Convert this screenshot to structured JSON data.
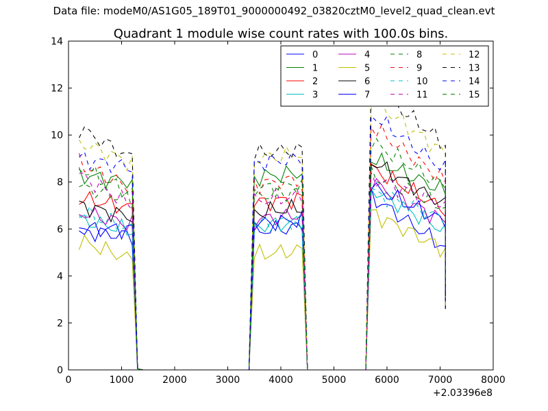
{
  "suptitle": "Data file: modeM0/AS1G05_189T01_9000000492_03820cztM0_level2_quad_clean.evt",
  "chart_data": {
    "type": "line",
    "title": "Quadrant 1 module wise count rates with 100.0s bins.",
    "xlabel": "",
    "ylabel": "",
    "x_offset_label": "+2.03396e8",
    "xlim": [
      0,
      8000
    ],
    "ylim": [
      0,
      14
    ],
    "xticks": [
      0,
      1000,
      2000,
      3000,
      4000,
      5000,
      6000,
      7000,
      8000
    ],
    "yticks": [
      0,
      2,
      4,
      6,
      8,
      10,
      12,
      14
    ],
    "grid": false,
    "legend": {
      "location": "top-right",
      "columns": 4
    },
    "bins": {
      "segment1": {
        "start": 200,
        "step": 100,
        "count": 11
      },
      "segment2": {
        "start": 3500,
        "step": 100,
        "count": 10
      },
      "segment3": {
        "start": 5700,
        "step": 100,
        "count": 15
      }
    },
    "series": [
      {
        "name": "0",
        "color": "#0000ff",
        "dash": "solid",
        "levels": [
          5.9,
          5.9,
          7.4,
          5.2
        ]
      },
      {
        "name": "1",
        "color": "#008000",
        "dash": "solid",
        "levels": [
          8.3,
          8.2,
          9.0,
          7.6
        ]
      },
      {
        "name": "2",
        "color": "#ff0000",
        "dash": "solid",
        "levels": [
          7.3,
          7.1,
          8.6,
          6.8
        ]
      },
      {
        "name": "3",
        "color": "#00bfbf",
        "dash": "solid",
        "levels": [
          6.4,
          6.1,
          7.7,
          5.9
        ]
      },
      {
        "name": "4",
        "color": "#bf00bf",
        "dash": "solid",
        "levels": [
          6.7,
          6.4,
          8.0,
          6.3
        ]
      },
      {
        "name": "5",
        "color": "#bfbf00",
        "dash": "solid",
        "levels": [
          5.5,
          4.9,
          6.7,
          5.1
        ]
      },
      {
        "name": "6",
        "color": "#000000",
        "dash": "solid",
        "levels": [
          7.0,
          6.7,
          8.9,
          7.0
        ]
      },
      {
        "name": "7",
        "color": "#0000ff",
        "dash": "solid",
        "levels": [
          6.0,
          6.2,
          7.8,
          6.3
        ]
      },
      {
        "name": "8",
        "color": "#008000",
        "dash": "dashed",
        "levels": [
          7.8,
          7.4,
          8.3,
          6.9
        ]
      },
      {
        "name": "9",
        "color": "#ff0000",
        "dash": "dashed",
        "levels": [
          8.8,
          7.9,
          10.4,
          8.0
        ]
      },
      {
        "name": "10",
        "color": "#00bfbf",
        "dash": "dashed",
        "levels": [
          6.7,
          6.2,
          7.6,
          6.4
        ]
      },
      {
        "name": "11",
        "color": "#bf00bf",
        "dash": "dashed",
        "levels": [
          8.3,
          7.2,
          8.2,
          7.0
        ]
      },
      {
        "name": "12",
        "color": "#bfbf00",
        "dash": "dashed",
        "levels": [
          9.7,
          9.0,
          11.5,
          9.2
        ]
      },
      {
        "name": "13",
        "color": "#000000",
        "dash": "dashed",
        "levels": [
          10.3,
          9.2,
          12.1,
          9.6
        ]
      },
      {
        "name": "14",
        "color": "#0000ff",
        "dash": "dashed",
        "levels": [
          9.0,
          8.8,
          10.9,
          8.5
        ]
      },
      {
        "name": "15",
        "color": "#008000",
        "dash": "dashed",
        "levels": [
          8.6,
          7.7,
          9.7,
          7.8
        ]
      }
    ]
  }
}
